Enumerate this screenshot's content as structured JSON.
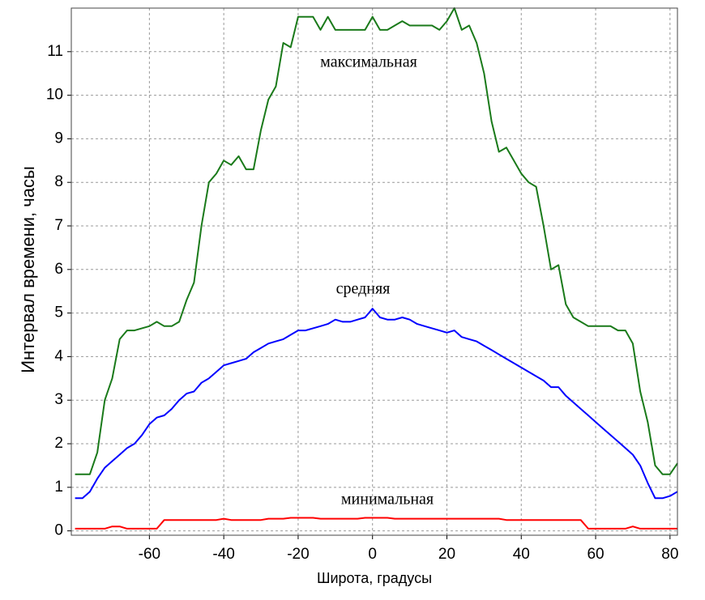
{
  "chart_data": {
    "type": "line",
    "xlabel": "Широта, градусы",
    "ylabel": "Интервал времени, часы",
    "x": [
      -80,
      -78,
      -76,
      -74,
      -72,
      -70,
      -68,
      -66,
      -64,
      -62,
      -60,
      -58,
      -56,
      -54,
      -52,
      -50,
      -48,
      -46,
      -44,
      -42,
      -40,
      -38,
      -36,
      -34,
      -32,
      -30,
      -28,
      -26,
      -24,
      -22,
      -20,
      -18,
      -16,
      -14,
      -12,
      -10,
      -8,
      -6,
      -4,
      -2,
      0,
      2,
      4,
      6,
      8,
      10,
      12,
      14,
      16,
      18,
      20,
      22,
      24,
      26,
      28,
      30,
      32,
      34,
      36,
      38,
      40,
      42,
      44,
      46,
      48,
      50,
      52,
      54,
      56,
      58,
      60,
      62,
      64,
      66,
      68,
      70,
      72,
      74,
      76,
      78,
      80,
      82
    ],
    "series": [
      {
        "name": "максимальная",
        "color": "#1a7a1a",
        "values": [
          1.3,
          1.3,
          1.3,
          1.8,
          3.0,
          3.5,
          4.4,
          4.6,
          4.6,
          4.65,
          4.7,
          4.8,
          4.7,
          4.7,
          4.8,
          5.3,
          5.7,
          7.0,
          8.0,
          8.2,
          8.5,
          8.4,
          8.6,
          8.3,
          8.3,
          9.2,
          9.9,
          10.2,
          11.2,
          11.1,
          11.8,
          11.8,
          11.8,
          11.5,
          11.8,
          11.5,
          11.5,
          11.5,
          11.5,
          11.5,
          11.8,
          11.5,
          11.5,
          11.6,
          11.7,
          11.6,
          11.6,
          11.6,
          11.6,
          11.5,
          11.7,
          12.0,
          11.5,
          11.6,
          11.2,
          10.5,
          9.4,
          8.7,
          8.8,
          8.5,
          8.2,
          8.0,
          7.9,
          7.0,
          6.0,
          6.1,
          5.2,
          4.9,
          4.8,
          4.7,
          4.7,
          4.7,
          4.7,
          4.6,
          4.6,
          4.3,
          3.2,
          2.5,
          1.5,
          1.3,
          1.3,
          1.55
        ]
      },
      {
        "name": "средняя",
        "color": "#0000ff",
        "values": [
          0.75,
          0.75,
          0.9,
          1.2,
          1.45,
          1.6,
          1.75,
          1.9,
          2.0,
          2.2,
          2.45,
          2.6,
          2.65,
          2.8,
          3.0,
          3.15,
          3.2,
          3.4,
          3.5,
          3.65,
          3.8,
          3.85,
          3.9,
          3.95,
          4.1,
          4.2,
          4.3,
          4.35,
          4.4,
          4.5,
          4.6,
          4.6,
          4.65,
          4.7,
          4.75,
          4.85,
          4.8,
          4.8,
          4.85,
          4.9,
          5.1,
          4.9,
          4.85,
          4.85,
          4.9,
          4.85,
          4.75,
          4.7,
          4.65,
          4.6,
          4.55,
          4.6,
          4.45,
          4.4,
          4.35,
          4.25,
          4.15,
          4.05,
          3.95,
          3.85,
          3.75,
          3.65,
          3.55,
          3.45,
          3.3,
          3.3,
          3.1,
          2.95,
          2.8,
          2.65,
          2.5,
          2.35,
          2.2,
          2.05,
          1.9,
          1.75,
          1.5,
          1.1,
          0.75,
          0.75,
          0.8,
          0.9
        ]
      },
      {
        "name": "минимальная",
        "color": "#ff0000",
        "values": [
          0.05,
          0.05,
          0.05,
          0.05,
          0.05,
          0.1,
          0.1,
          0.05,
          0.05,
          0.05,
          0.05,
          0.05,
          0.25,
          0.25,
          0.25,
          0.25,
          0.25,
          0.25,
          0.25,
          0.25,
          0.28,
          0.25,
          0.25,
          0.25,
          0.25,
          0.25,
          0.28,
          0.28,
          0.28,
          0.3,
          0.3,
          0.3,
          0.3,
          0.28,
          0.28,
          0.28,
          0.28,
          0.28,
          0.28,
          0.3,
          0.3,
          0.3,
          0.3,
          0.28,
          0.28,
          0.28,
          0.28,
          0.28,
          0.28,
          0.28,
          0.28,
          0.28,
          0.28,
          0.28,
          0.28,
          0.28,
          0.28,
          0.28,
          0.25,
          0.25,
          0.25,
          0.25,
          0.25,
          0.25,
          0.25,
          0.25,
          0.25,
          0.25,
          0.25,
          0.05,
          0.05,
          0.05,
          0.05,
          0.05,
          0.05,
          0.1,
          0.05,
          0.05,
          0.05,
          0.05,
          0.05,
          0.05
        ]
      }
    ],
    "xlim": [
      -81,
      82
    ],
    "ylim": [
      -0.1,
      12
    ],
    "xticks": [
      -60,
      -40,
      -20,
      0,
      20,
      40,
      60,
      80
    ],
    "yticks": [
      0,
      1,
      2,
      3,
      4,
      5,
      6,
      7,
      8,
      9,
      10,
      11
    ],
    "grid": true
  }
}
